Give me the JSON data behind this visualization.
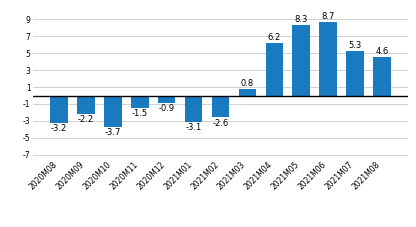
{
  "categories": [
    "2020M08",
    "2020M09",
    "2020M10",
    "2020M11",
    "2020M12",
    "2021M01",
    "2021M02",
    "2021M03",
    "2021M04",
    "2021M05",
    "2021M06",
    "2021M07",
    "2021M08"
  ],
  "values": [
    -3.2,
    -2.2,
    -3.7,
    -1.5,
    -0.9,
    -3.1,
    -2.6,
    0.8,
    6.2,
    8.3,
    8.7,
    5.3,
    4.6
  ],
  "bar_color": "#1a7abf",
  "ylim": [
    -7.5,
    10.5
  ],
  "yticks": [
    -7,
    -5,
    -3,
    -1,
    1,
    3,
    5,
    7,
    9
  ],
  "background_color": "#ffffff",
  "grid_color": "#d0d0d0",
  "label_fontsize": 6.0,
  "tick_fontsize": 5.5,
  "bar_width": 0.65
}
